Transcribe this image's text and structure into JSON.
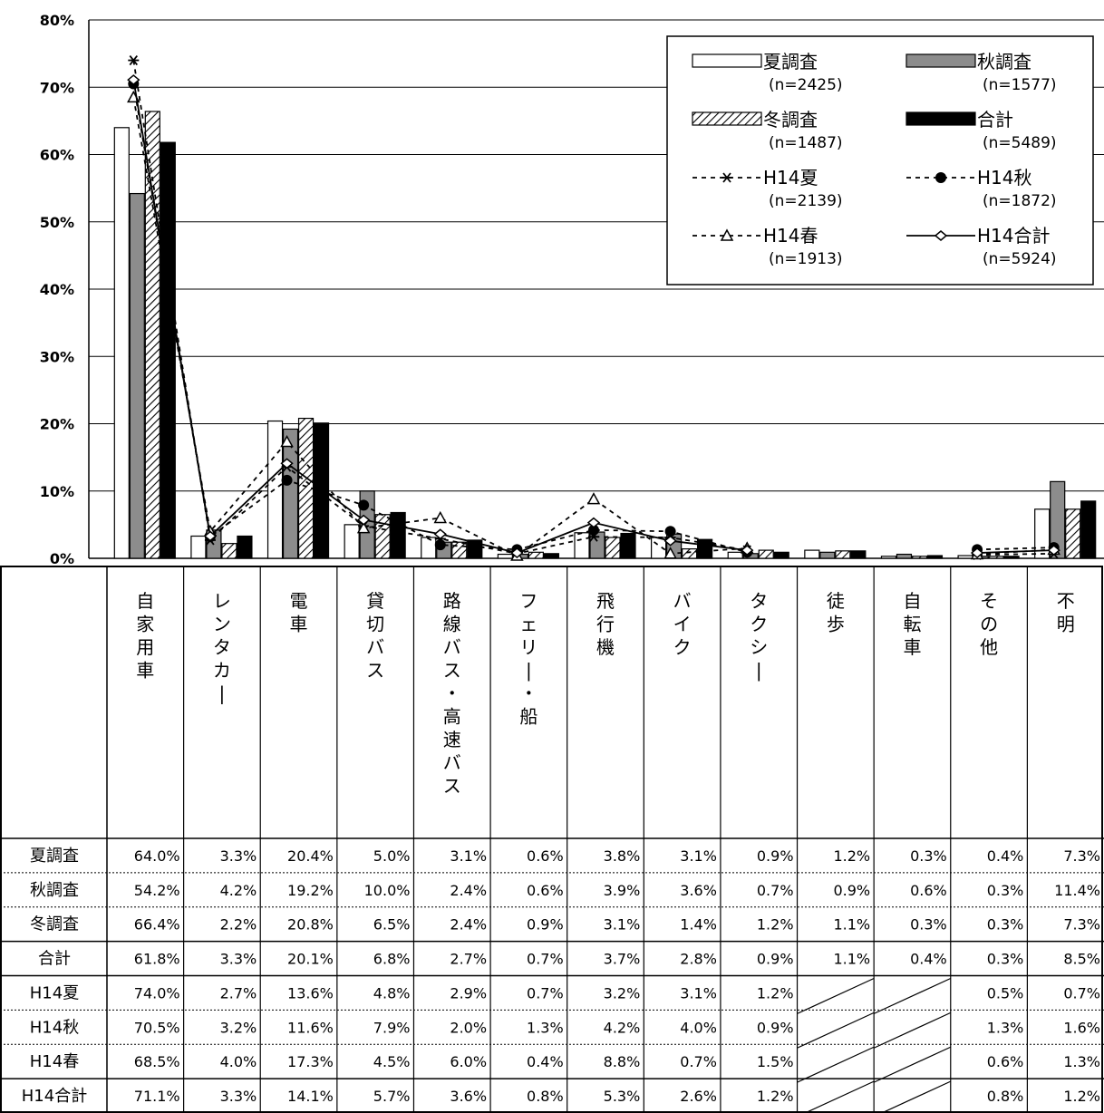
{
  "chart_data": {
    "type": "bar",
    "ylim": [
      0,
      80
    ],
    "yticks": [
      "0%",
      "10%",
      "20%",
      "30%",
      "40%",
      "50%",
      "60%",
      "70%",
      "80%"
    ],
    "categories": [
      "自家用車",
      "レンタカー",
      "電車",
      "貸切バス",
      "路線バス・高速バス",
      "フェリー・船",
      "飛行機",
      "バイク",
      "タクシー",
      "徒歩",
      "自転車",
      "その他",
      "不明"
    ],
    "bar_series": [
      {
        "name": "夏調査",
        "n": "(n=2425)",
        "fill": "#ffffff",
        "values": [
          64.0,
          3.3,
          20.4,
          5.0,
          3.1,
          0.6,
          3.8,
          3.1,
          0.9,
          1.2,
          0.3,
          0.4,
          7.3
        ],
        "labels": [
          "64.0%",
          "3.3%",
          "20.4%",
          "5.0%",
          "3.1%",
          "0.6%",
          "3.8%",
          "3.1%",
          "0.9%",
          "1.2%",
          "0.3%",
          "0.4%",
          "7.3%"
        ]
      },
      {
        "name": "秋調査",
        "n": "(n=1577)",
        "fill": "#8c8c8c",
        "values": [
          54.2,
          4.2,
          19.2,
          10.0,
          2.4,
          0.6,
          3.9,
          3.6,
          0.7,
          0.9,
          0.6,
          0.3,
          11.4
        ],
        "labels": [
          "54.2%",
          "4.2%",
          "19.2%",
          "10.0%",
          "2.4%",
          "0.6%",
          "3.9%",
          "3.6%",
          "0.7%",
          "0.9%",
          "0.6%",
          "0.3%",
          "11.4%"
        ]
      },
      {
        "name": "冬調査",
        "n": "(n=1487)",
        "fill": "hatch",
        "values": [
          66.4,
          2.2,
          20.8,
          6.5,
          2.4,
          0.9,
          3.1,
          1.4,
          1.2,
          1.1,
          0.3,
          0.3,
          7.3
        ],
        "labels": [
          "66.4%",
          "2.2%",
          "20.8%",
          "6.5%",
          "2.4%",
          "0.9%",
          "3.1%",
          "1.4%",
          "1.2%",
          "1.1%",
          "0.3%",
          "0.3%",
          "7.3%"
        ]
      },
      {
        "name": "合計",
        "n": "(n=5489)",
        "fill": "#000000",
        "values": [
          61.8,
          3.3,
          20.1,
          6.8,
          2.7,
          0.7,
          3.7,
          2.8,
          0.9,
          1.1,
          0.4,
          0.3,
          8.5
        ],
        "labels": [
          "61.8%",
          "3.3%",
          "20.1%",
          "6.8%",
          "2.7%",
          "0.7%",
          "3.7%",
          "2.8%",
          "0.9%",
          "1.1%",
          "0.4%",
          "0.3%",
          "8.5%"
        ]
      }
    ],
    "line_series": [
      {
        "name": "H14夏",
        "n": "(n=2139)",
        "dash": true,
        "marker": "asterisk",
        "values": [
          74.0,
          2.7,
          13.6,
          4.8,
          2.9,
          0.7,
          3.2,
          3.1,
          1.2,
          null,
          null,
          0.5,
          0.7
        ],
        "labels": [
          "74.0%",
          "2.7%",
          "13.6%",
          "4.8%",
          "2.9%",
          "0.7%",
          "3.2%",
          "3.1%",
          "1.2%",
          "",
          "",
          "0.5%",
          "0.7%"
        ]
      },
      {
        "name": "H14秋",
        "n": "(n=1872)",
        "dash": true,
        "marker": "circle",
        "values": [
          70.5,
          3.2,
          11.6,
          7.9,
          2.0,
          1.3,
          4.2,
          4.0,
          0.9,
          null,
          null,
          1.3,
          1.6
        ],
        "labels": [
          "70.5%",
          "3.2%",
          "11.6%",
          "7.9%",
          "2.0%",
          "1.3%",
          "4.2%",
          "4.0%",
          "0.9%",
          "",
          "",
          "1.3%",
          "1.6%"
        ]
      },
      {
        "name": "H14春",
        "n": "(n=1913)",
        "dash": true,
        "marker": "triangle",
        "values": [
          68.5,
          4.0,
          17.3,
          4.5,
          6.0,
          0.4,
          8.8,
          0.7,
          1.5,
          null,
          null,
          0.6,
          1.3
        ],
        "labels": [
          "68.5%",
          "4.0%",
          "17.3%",
          "4.5%",
          "6.0%",
          "0.4%",
          "8.8%",
          "0.7%",
          "1.5%",
          "",
          "",
          "0.6%",
          "1.3%"
        ]
      },
      {
        "name": "H14合計",
        "n": "(n=5924)",
        "dash": false,
        "marker": "diamond",
        "values": [
          71.1,
          3.3,
          14.1,
          5.7,
          3.6,
          0.8,
          5.3,
          2.6,
          1.2,
          null,
          null,
          0.8,
          1.2
        ],
        "labels": [
          "71.1%",
          "3.3%",
          "14.1%",
          "5.7%",
          "3.6%",
          "0.8%",
          "5.3%",
          "2.6%",
          "1.2%",
          "",
          "",
          "0.8%",
          "1.2%"
        ]
      }
    ],
    "table_row_order": [
      "夏調査",
      "秋調査",
      "冬調査",
      "合計",
      "H14夏",
      "H14秋",
      "H14春",
      "H14合計"
    ],
    "legend_position": "top-right",
    "grid": true
  }
}
